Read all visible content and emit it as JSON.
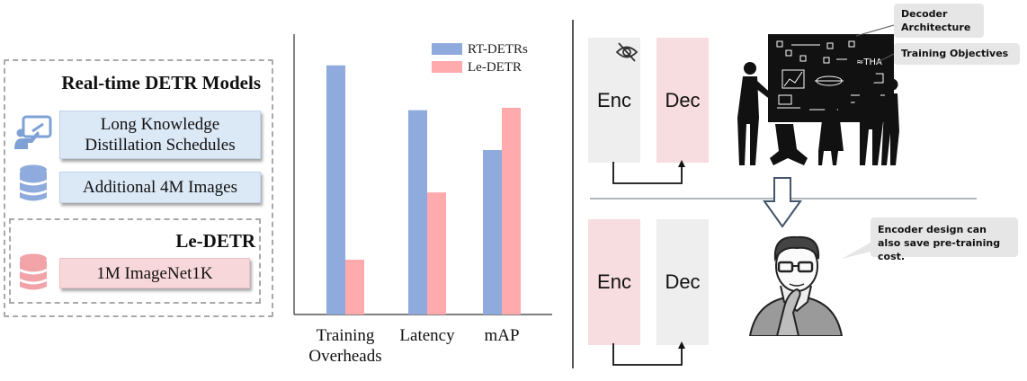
{
  "left_panel": {
    "title": "Real-time DETR Models",
    "items": [
      {
        "icon": "presentation-icon",
        "label": "Long Knowledge Distillation Schedules"
      },
      {
        "icon": "database-icon",
        "label": "Additional 4M Images"
      }
    ],
    "sub_panel": {
      "title": "Le-DETR",
      "items": [
        {
          "icon": "database-icon",
          "label": "1M ImageNet1K"
        }
      ]
    }
  },
  "chart_data": {
    "type": "bar",
    "categories": [
      "Training Overheads",
      "Latency",
      "mAP"
    ],
    "category_lines": [
      [
        "Training",
        "Overheads"
      ],
      [
        "Latency"
      ],
      [
        "mAP"
      ]
    ],
    "series": [
      {
        "name": "RT-DETRs",
        "color": "#8faadc",
        "values": [
          1.0,
          0.82,
          0.66
        ]
      },
      {
        "name": "Le-DETR",
        "color": "#ffaaad",
        "values": [
          0.22,
          0.49,
          0.83
        ]
      }
    ],
    "ylim": [
      0,
      1.1
    ],
    "grid": false,
    "legend_position": "top-right"
  },
  "right_panel": {
    "top_row": {
      "enc_label": "Enc",
      "dec_label": "Dec",
      "enc_icon": "eye-slash-icon"
    },
    "bottom_row": {
      "enc_label": "Enc",
      "dec_label": "Dec"
    },
    "callouts": {
      "decoder": "Decoder Architecture",
      "training": "Training Objectives",
      "encoder": "Encoder design can also save pre-training cost."
    },
    "blackboard_text": "≈THA",
    "colors": {
      "pink": "#f7dde0",
      "gray": "#eeeeee",
      "chip_blue": "#dbe8f6",
      "chip_pink": "#f8d7da"
    }
  }
}
